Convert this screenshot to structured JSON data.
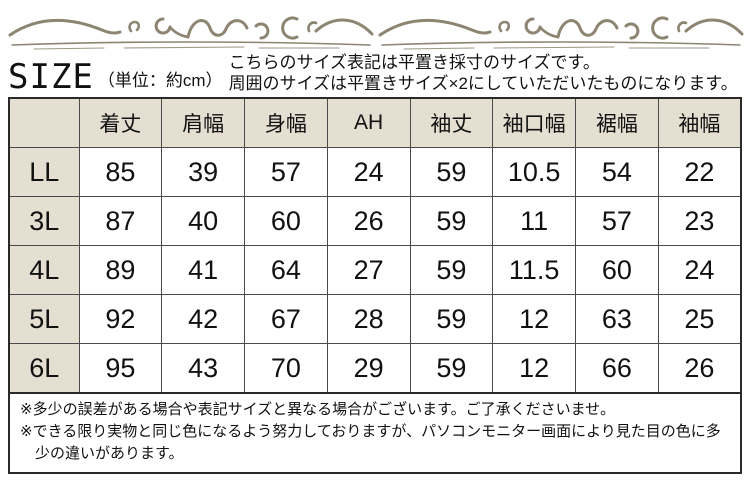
{
  "title": {
    "size_label": "SIZE",
    "unit_label": "（単位：約cm）",
    "intro_line1": "こちらのサイズ表記は平置き採寸のサイズです。",
    "intro_line2": "周囲のサイズは平置きサイズ×2にしていただいたものになります。"
  },
  "chart_data": {
    "type": "table",
    "title": "SIZE（単位：約cm）",
    "unit": "cm",
    "columns": [
      "着丈",
      "肩幅",
      "身幅",
      "AH",
      "袖丈",
      "袖口幅",
      "裾幅",
      "袖幅"
    ],
    "rows": [
      {
        "label": "LL",
        "values": [
          "85",
          "39",
          "57",
          "24",
          "59",
          "10.5",
          "54",
          "22"
        ]
      },
      {
        "label": "3L",
        "values": [
          "87",
          "40",
          "60",
          "26",
          "59",
          "11",
          "57",
          "23"
        ]
      },
      {
        "label": "4L",
        "values": [
          "89",
          "41",
          "64",
          "27",
          "59",
          "11.5",
          "60",
          "24"
        ]
      },
      {
        "label": "5L",
        "values": [
          "92",
          "42",
          "67",
          "28",
          "59",
          "12",
          "63",
          "25"
        ]
      },
      {
        "label": "6L",
        "values": [
          "95",
          "43",
          "70",
          "29",
          "59",
          "12",
          "66",
          "26"
        ]
      }
    ]
  },
  "notes": {
    "note1": "※多少の誤差がある場合や表記サイズと異なる場合がございます。ご了承くださいませ。",
    "note2": "※できる限り実物と同じ色になるよう努力しておりますが、パソコンモニター画面により見た目の色に多少の違いがあります。"
  },
  "colors": {
    "page_bg": "#ffffff",
    "header_bg": "#e4dfd0",
    "border": "#4a4a4a",
    "border_strong": "#2a2a2a",
    "ornament": "#8d8472",
    "text": "#111111"
  }
}
